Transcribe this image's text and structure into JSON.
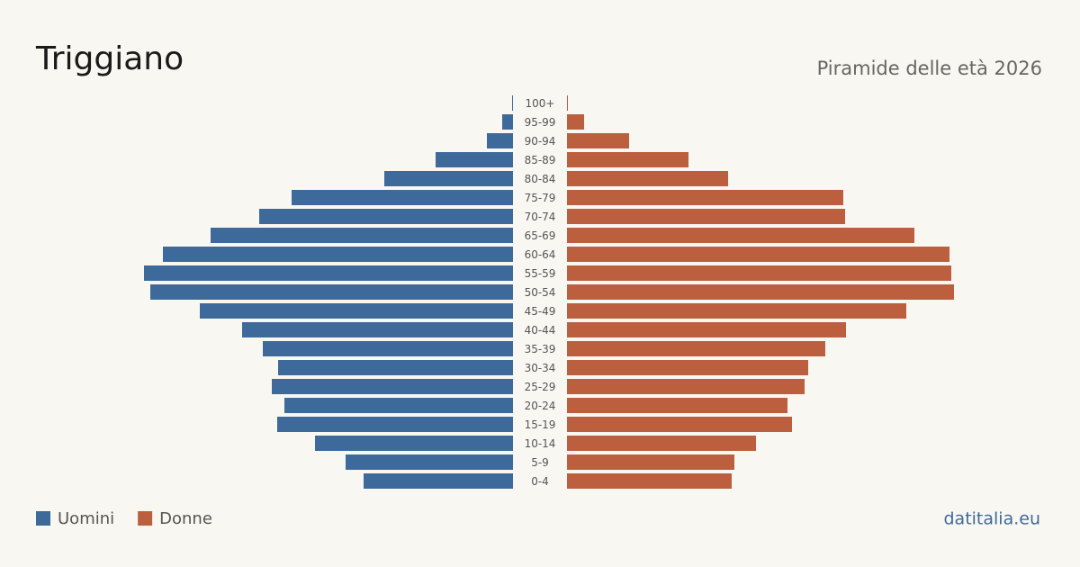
{
  "chart_data": {
    "type": "pyramid",
    "title": "Triggiano",
    "subtitle": "Piramide delle età 2026",
    "source": "datitalia.eu",
    "categories": [
      "100+",
      "95-99",
      "90-94",
      "85-89",
      "80-84",
      "75-79",
      "70-74",
      "65-69",
      "60-64",
      "55-59",
      "50-54",
      "45-49",
      "40-44",
      "35-39",
      "30-34",
      "25-29",
      "20-24",
      "15-19",
      "10-14",
      "5-9",
      "0-4"
    ],
    "series": [
      {
        "name": "Uomini",
        "color": "#3d6a9a",
        "values": [
          1,
          12,
          29,
          86,
          143,
          246,
          282,
          336,
          389,
          410,
          403,
          348,
          301,
          278,
          261,
          268,
          254,
          262,
          220,
          186,
          166
        ]
      },
      {
        "name": "Donne",
        "color": "#bc5f3e",
        "values": [
          1,
          19,
          69,
          135,
          179,
          307,
          309,
          386,
          425,
          427,
          430,
          377,
          310,
          287,
          268,
          264,
          245,
          250,
          210,
          186,
          183
        ]
      }
    ]
  }
}
